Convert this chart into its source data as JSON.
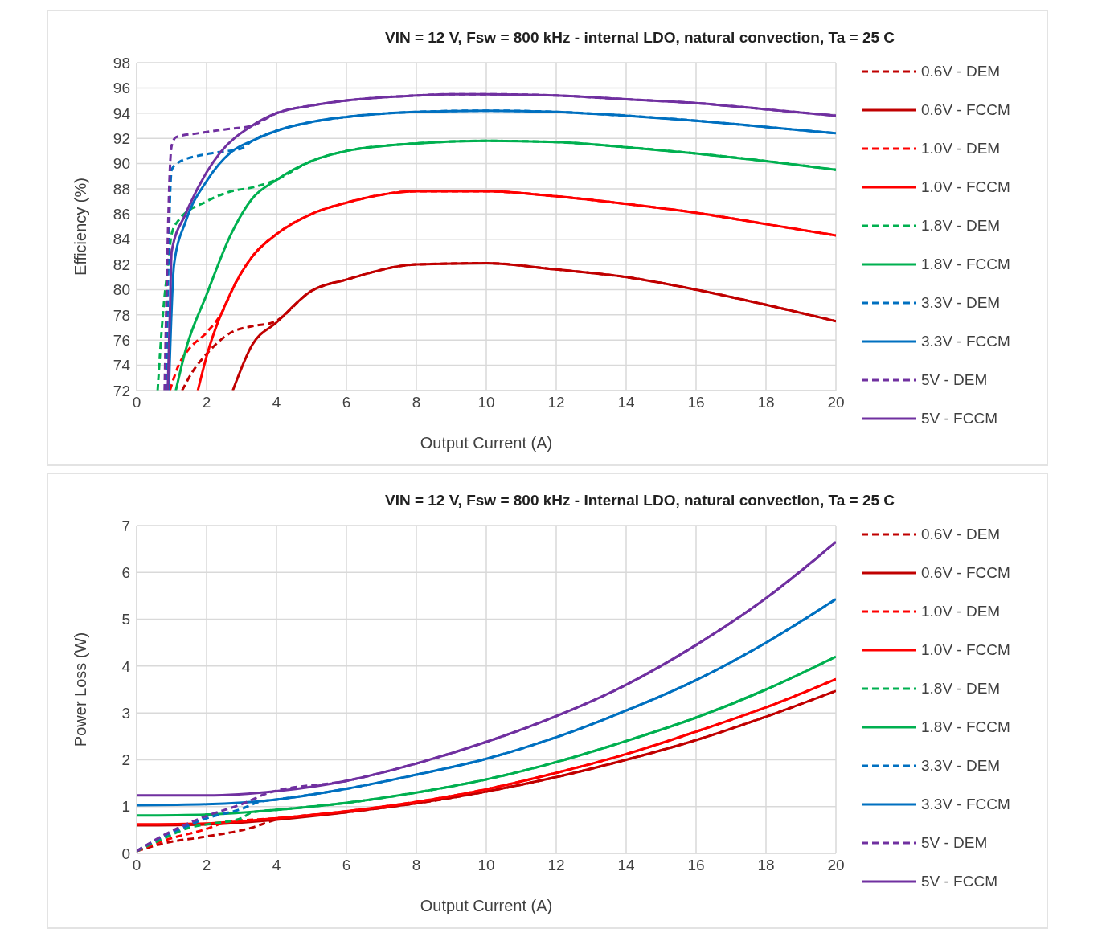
{
  "chart_data": [
    {
      "type": "line",
      "title": "VIN = 12 V, Fsw = 800 kHz - internal LDO, natural convection, Ta = 25 C",
      "xlabel": "Output Current (A)",
      "ylabel": "Efficiency (%)",
      "xlim": [
        0,
        20
      ],
      "xticks": [
        0,
        2,
        4,
        6,
        8,
        10,
        12,
        14,
        16,
        18,
        20
      ],
      "ylim": [
        72,
        98
      ],
      "yticks": [
        72,
        74,
        76,
        78,
        80,
        82,
        84,
        86,
        88,
        90,
        92,
        94,
        96,
        98
      ],
      "grid": true,
      "legend": "right",
      "marker": "none",
      "series": [
        {
          "name": "0.6V - DEM",
          "color": "#c00000",
          "line_style": "dashed",
          "x": [
            1.3,
            1.6,
            2,
            2.7,
            3.3,
            3.9,
            5,
            6,
            8,
            10,
            12,
            14,
            16,
            18,
            20
          ],
          "values": [
            72,
            73.5,
            74.9,
            76.6,
            77.1,
            77.4,
            79.9,
            80.8,
            82.0,
            82.1,
            81.6,
            81.0,
            80.0,
            78.8,
            77.5
          ]
        },
        {
          "name": "0.6V - FCCM",
          "color": "#c00000",
          "line_style": "solid",
          "x": [
            2.75,
            3.3,
            4,
            5,
            6,
            8,
            10,
            12,
            14,
            16,
            18,
            20
          ],
          "values": [
            72,
            75.6,
            77.4,
            79.9,
            80.8,
            82.0,
            82.1,
            81.6,
            81.0,
            80.0,
            78.8,
            77.5
          ]
        },
        {
          "name": "1.0V - DEM",
          "color": "#ff0000",
          "line_style": "dashed",
          "x": [
            0.95,
            1.2,
            1.5,
            2,
            2.5,
            2.7,
            3.3,
            4,
            5,
            6,
            8,
            10,
            12,
            14,
            16,
            18,
            20
          ],
          "values": [
            72,
            74,
            75.3,
            76.6,
            78.5,
            79.8,
            82.6,
            84.4,
            86.0,
            86.9,
            87.8,
            87.8,
            87.4,
            86.8,
            86.1,
            85.2,
            84.3
          ]
        },
        {
          "name": "1.0V - FCCM",
          "color": "#ff0000",
          "line_style": "solid",
          "x": [
            1.75,
            2,
            2.7,
            3.3,
            4,
            5,
            6,
            8,
            10,
            12,
            14,
            16,
            18,
            20
          ],
          "values": [
            72,
            74.7,
            79.8,
            82.6,
            84.4,
            86.0,
            86.9,
            87.8,
            87.8,
            87.4,
            86.8,
            86.1,
            85.2,
            84.3
          ]
        },
        {
          "name": "1.8V - DEM",
          "color": "#00b050",
          "line_style": "dashed",
          "x": [
            0.6,
            0.75,
            0.9,
            1,
            1.2,
            2,
            2.7,
            3.3,
            3.9,
            5,
            6,
            8,
            10,
            12,
            14,
            16,
            18,
            20
          ],
          "values": [
            72,
            78,
            82,
            84.4,
            85.5,
            87,
            87.8,
            88.1,
            88.6,
            90.2,
            91,
            91.6,
            91.8,
            91.7,
            91.3,
            90.8,
            90.2,
            89.5
          ]
        },
        {
          "name": "1.8V - FCCM",
          "color": "#00b050",
          "line_style": "solid",
          "x": [
            1.12,
            1.4,
            2,
            2.7,
            3.3,
            4,
            5,
            6,
            8,
            10,
            12,
            14,
            16,
            18,
            20
          ],
          "values": [
            72,
            75.2,
            79.6,
            84.4,
            87.2,
            88.7,
            90.2,
            91,
            91.6,
            91.8,
            91.7,
            91.3,
            90.8,
            90.2,
            89.5
          ]
        },
        {
          "name": "3.3V - DEM",
          "color": "#0070c0",
          "line_style": "dashed",
          "x": [
            0.85,
            0.95,
            1,
            1.2,
            2.1,
            3,
            3.3,
            4,
            5,
            6,
            8,
            10,
            12,
            14,
            16,
            18,
            20
          ],
          "values": [
            72,
            87,
            89.5,
            90.1,
            90.8,
            91.2,
            91.8,
            92.6,
            93.3,
            93.7,
            94.1,
            94.2,
            94.1,
            93.8,
            93.4,
            92.9,
            92.4
          ]
        },
        {
          "name": "3.3V - FCCM",
          "color": "#0070c0",
          "line_style": "solid",
          "x": [
            0.92,
            1.07,
            1.4,
            2,
            2.7,
            3.3,
            4,
            5,
            6,
            8,
            10,
            12,
            14,
            16,
            18,
            20
          ],
          "values": [
            72,
            82,
            85.4,
            88.6,
            90.9,
            91.8,
            92.6,
            93.3,
            93.7,
            94.1,
            94.2,
            94.1,
            93.8,
            93.4,
            92.9,
            92.4
          ]
        },
        {
          "name": "5V - DEM",
          "color": "#7030a0",
          "line_style": "dashed",
          "x": [
            0.8,
            0.9,
            0.95,
            1,
            1.13,
            1.75,
            2.5,
            3.3,
            4,
            5,
            6,
            8,
            9,
            10,
            12,
            14,
            16,
            18,
            20
          ],
          "values": [
            72,
            85,
            89.5,
            91.4,
            92.1,
            92.4,
            92.7,
            93.0,
            94.0,
            94.6,
            95.0,
            95.4,
            95.5,
            95.5,
            95.4,
            95.1,
            94.8,
            94.3,
            93.8
          ]
        },
        {
          "name": "5V - FCCM",
          "color": "#7030a0",
          "line_style": "solid",
          "x": [
            0.89,
            0.95,
            1,
            1.4,
            2,
            2.4,
            3.3,
            4,
            5,
            6,
            8,
            9,
            10,
            12,
            14,
            16,
            18,
            20
          ],
          "values": [
            72,
            78,
            83,
            86,
            89.3,
            90.9,
            93.0,
            94.0,
            94.6,
            95.0,
            95.4,
            95.5,
            95.5,
            95.4,
            95.1,
            94.8,
            94.3,
            93.8
          ]
        }
      ]
    },
    {
      "type": "line",
      "title": "VIN = 12 V, Fsw = 800 kHz - Internal LDO, natural convection, Ta = 25 C",
      "xlabel": "Output Current (A)",
      "ylabel": "Power Loss (W)",
      "xlim": [
        0,
        20
      ],
      "xticks": [
        0,
        2,
        4,
        6,
        8,
        10,
        12,
        14,
        16,
        18,
        20
      ],
      "ylim": [
        0,
        7
      ],
      "yticks": [
        0,
        1,
        2,
        3,
        4,
        5,
        6,
        7
      ],
      "grid": true,
      "legend": "right",
      "marker": "none",
      "series": [
        {
          "name": "0.6V - DEM",
          "color": "#c00000",
          "line_style": "dashed",
          "x": [
            0,
            0.8,
            1.9,
            3.3,
            4,
            6,
            8,
            10,
            12,
            14,
            16,
            18,
            20
          ],
          "values": [
            0.05,
            0.22,
            0.35,
            0.55,
            0.72,
            0.88,
            1.07,
            1.32,
            1.63,
            2.0,
            2.42,
            2.92,
            3.47
          ]
        },
        {
          "name": "0.6V - FCCM",
          "color": "#c00000",
          "line_style": "solid",
          "x": [
            0,
            2,
            4,
            6,
            8,
            10,
            12,
            14,
            16,
            18,
            20
          ],
          "values": [
            0.6,
            0.62,
            0.72,
            0.88,
            1.07,
            1.32,
            1.63,
            2.0,
            2.42,
            2.92,
            3.47
          ]
        },
        {
          "name": "1.0V - DEM",
          "color": "#ff0000",
          "line_style": "dashed",
          "x": [
            0,
            0.8,
            1.9,
            2.6,
            4,
            6,
            8,
            10,
            12,
            14,
            16,
            18,
            20
          ],
          "values": [
            0.05,
            0.28,
            0.5,
            0.67,
            0.75,
            0.9,
            1.1,
            1.37,
            1.72,
            2.12,
            2.6,
            3.12,
            3.72
          ]
        },
        {
          "name": "1.0V - FCCM",
          "color": "#ff0000",
          "line_style": "solid",
          "x": [
            0,
            2,
            4,
            6,
            8,
            10,
            12,
            14,
            16,
            18,
            20
          ],
          "values": [
            0.62,
            0.64,
            0.75,
            0.9,
            1.1,
            1.37,
            1.72,
            2.12,
            2.6,
            3.12,
            3.72
          ]
        },
        {
          "name": "1.8V - DEM",
          "color": "#00b050",
          "line_style": "dashed",
          "x": [
            0,
            0.8,
            1.5,
            2,
            3,
            3.3,
            4,
            6,
            8,
            10,
            12,
            14,
            16,
            18,
            20
          ],
          "values": [
            0.05,
            0.33,
            0.55,
            0.62,
            0.75,
            0.88,
            0.93,
            1.08,
            1.3,
            1.58,
            1.95,
            2.4,
            2.9,
            3.5,
            4.2
          ]
        },
        {
          "name": "1.8V - FCCM",
          "color": "#00b050",
          "line_style": "solid",
          "x": [
            0,
            2,
            4,
            6,
            8,
            10,
            12,
            14,
            16,
            18,
            20
          ],
          "values": [
            0.81,
            0.83,
            0.93,
            1.08,
            1.3,
            1.58,
            1.95,
            2.4,
            2.9,
            3.5,
            4.2
          ]
        },
        {
          "name": "3.3V - DEM",
          "color": "#0070c0",
          "line_style": "dashed",
          "x": [
            0,
            0.8,
            1.5,
            2,
            3,
            3.5,
            4,
            6,
            8,
            10,
            12,
            14,
            16,
            18,
            20
          ],
          "values": [
            0.05,
            0.38,
            0.6,
            0.75,
            0.95,
            1.1,
            1.15,
            1.38,
            1.68,
            2.02,
            2.48,
            3.05,
            3.7,
            4.5,
            5.43
          ]
        },
        {
          "name": "3.3V - FCCM",
          "color": "#0070c0",
          "line_style": "solid",
          "x": [
            0,
            2,
            4,
            6,
            8,
            10,
            12,
            14,
            16,
            18,
            20
          ],
          "values": [
            1.03,
            1.05,
            1.15,
            1.38,
            1.68,
            2.02,
            2.48,
            3.05,
            3.7,
            4.5,
            5.43
          ]
        },
        {
          "name": "5V - DEM",
          "color": "#7030a0",
          "line_style": "dashed",
          "x": [
            0,
            0.8,
            1.5,
            2,
            3,
            3.8,
            6,
            8,
            10,
            12,
            14,
            16,
            18,
            20
          ],
          "values": [
            0.05,
            0.4,
            0.65,
            0.8,
            1.05,
            1.3,
            1.55,
            1.92,
            2.38,
            2.93,
            3.6,
            4.45,
            5.45,
            6.65
          ]
        },
        {
          "name": "5V - FCCM",
          "color": "#7030a0",
          "line_style": "solid",
          "x": [
            0,
            2,
            4,
            6,
            8,
            10,
            12,
            14,
            16,
            18,
            20
          ],
          "values": [
            1.24,
            1.24,
            1.33,
            1.55,
            1.92,
            2.38,
            2.93,
            3.6,
            4.45,
            5.45,
            6.65
          ]
        }
      ]
    }
  ]
}
